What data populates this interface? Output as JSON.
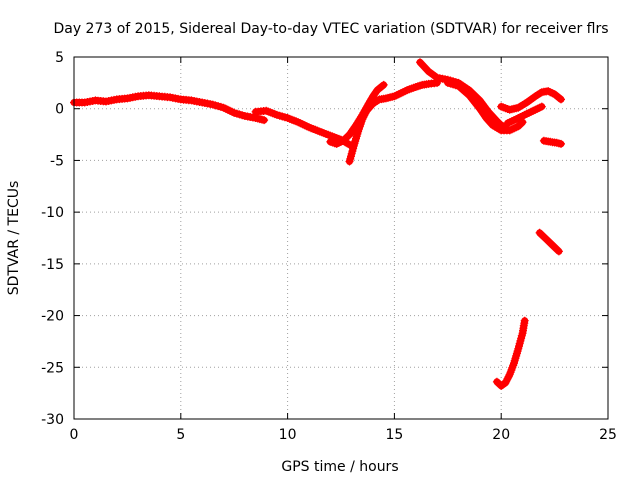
{
  "chart_data": {
    "type": "scatter",
    "title": "Day 273 of 2015, Sidereal Day-to-day VTEC variation (SDTVAR) for receiver flrs",
    "xlabel": "GPS time / hours",
    "ylabel": "SDTVAR / TECUs",
    "xlim": [
      0,
      25
    ],
    "ylim": [
      -30,
      5
    ],
    "xticks": [
      0,
      5,
      10,
      15,
      20,
      25
    ],
    "yticks": [
      -30,
      -25,
      -20,
      -15,
      -10,
      -5,
      0,
      5
    ],
    "grid": true,
    "color": "#ff0000",
    "series": [
      {
        "x": [
          0.0,
          0.5,
          1.0,
          1.5,
          2.0,
          2.5,
          3.0,
          3.5,
          4.0,
          4.5,
          5.0,
          5.5,
          6.0,
          6.5,
          7.0,
          7.5,
          8.0,
          8.5,
          8.9
        ],
        "y": [
          0.6,
          0.6,
          0.8,
          0.7,
          0.9,
          1.0,
          1.2,
          1.3,
          1.2,
          1.1,
          0.9,
          0.8,
          0.6,
          0.4,
          0.1,
          -0.4,
          -0.7,
          -0.9,
          -1.1
        ]
      },
      {
        "x": [
          8.5,
          9.0,
          9.5,
          10.0,
          10.5,
          11.0,
          11.5,
          12.0,
          12.5,
          13.0
        ],
        "y": [
          -0.3,
          -0.2,
          -0.6,
          -0.9,
          -1.3,
          -1.8,
          -2.2,
          -2.6,
          -3.0,
          -3.6
        ]
      },
      {
        "x": [
          12.0,
          12.3,
          12.6,
          12.9,
          13.2,
          13.5,
          13.8,
          14.0,
          14.2,
          14.5
        ],
        "y": [
          -3.2,
          -3.4,
          -3.1,
          -2.5,
          -1.6,
          -0.6,
          0.5,
          1.2,
          1.8,
          2.3
        ]
      },
      {
        "x": [
          12.9,
          13.1,
          13.3,
          13.5,
          13.7,
          14.0,
          14.3,
          14.6,
          15.0,
          15.3,
          15.6,
          16.0,
          16.3,
          16.6,
          17.0
        ],
        "y": [
          -5.1,
          -3.6,
          -2.2,
          -1.0,
          -0.2,
          0.5,
          0.9,
          1.0,
          1.2,
          1.5,
          1.8,
          2.1,
          2.3,
          2.4,
          2.5
        ]
      },
      {
        "x": [
          16.2,
          16.6,
          17.0,
          17.5,
          18.0,
          18.5,
          19.0,
          19.4,
          19.8,
          20.0,
          20.2
        ],
        "y": [
          4.5,
          3.6,
          3.0,
          2.8,
          2.5,
          1.8,
          0.8,
          -0.3,
          -1.2,
          -1.6,
          -1.8
        ]
      },
      {
        "x": [
          17.5,
          18.0,
          18.5,
          19.0,
          19.3,
          19.6,
          20.0,
          20.4,
          20.8,
          21.0
        ],
        "y": [
          2.5,
          2.2,
          1.3,
          0.0,
          -0.9,
          -1.6,
          -2.1,
          -2.1,
          -1.7,
          -1.3
        ]
      },
      {
        "x": [
          20.0,
          20.4,
          20.8,
          21.2,
          21.6,
          21.9,
          22.2,
          22.5,
          22.8
        ],
        "y": [
          0.2,
          -0.1,
          0.1,
          0.6,
          1.2,
          1.6,
          1.7,
          1.4,
          0.9
        ]
      },
      {
        "x": [
          20.3,
          20.7,
          21.1,
          21.5,
          21.9
        ],
        "y": [
          -1.4,
          -1.0,
          -0.6,
          -0.2,
          0.2
        ]
      },
      {
        "x": [
          22.0,
          22.3,
          22.6,
          22.8
        ],
        "y": [
          -3.1,
          -3.2,
          -3.3,
          -3.4
        ]
      },
      {
        "x": [
          21.8,
          22.1,
          22.4,
          22.7
        ],
        "y": [
          -12.0,
          -12.6,
          -13.2,
          -13.8
        ]
      },
      {
        "x": [
          19.8,
          20.0,
          20.2,
          20.4,
          20.6,
          20.8,
          21.0,
          21.1
        ],
        "y": [
          -26.4,
          -26.8,
          -26.5,
          -25.7,
          -24.6,
          -23.2,
          -21.7,
          -20.5
        ]
      }
    ]
  }
}
